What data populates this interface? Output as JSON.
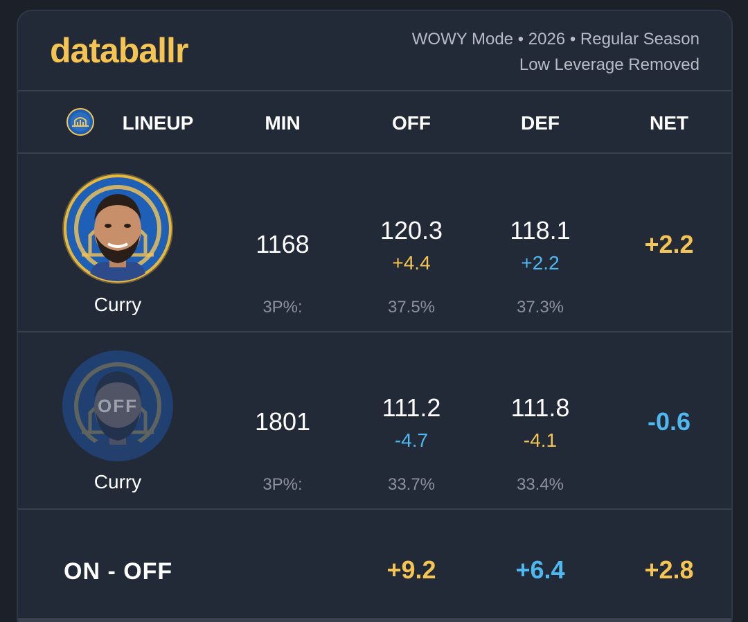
{
  "header": {
    "logo": "databallr",
    "meta_line1": "WOWY Mode • 2026 • Regular Season",
    "meta_line2": "Low Leverage Removed"
  },
  "columns": {
    "lineup": "LINEUP",
    "min": "MIN",
    "off": "OFF",
    "def": "DEF",
    "net": "NET"
  },
  "rows": [
    {
      "player": "Curry",
      "status": "on",
      "min": "1168",
      "off": "120.3",
      "off_delta": "+4.4",
      "def": "118.1",
      "def_delta": "+2.2",
      "net": "+2.2",
      "label_3p": "3P%:",
      "off_3p": "37.5%",
      "def_3p": "37.3%"
    },
    {
      "player": "Curry",
      "status": "off",
      "off_badge": "OFF",
      "min": "1801",
      "off": "111.2",
      "off_delta": "-4.7",
      "def": "111.8",
      "def_delta": "-4.1",
      "net": "-0.6",
      "label_3p": "3P%:",
      "off_3p": "33.7%",
      "def_3p": "33.4%"
    }
  ],
  "summary": {
    "title": "ON - OFF",
    "off": "+9.2",
    "def": "+6.4",
    "net": "+2.8"
  },
  "icons": {
    "team_logo": "golden-state-warriors-logo",
    "avatar": "player-avatar"
  },
  "colors": {
    "background": "#1b2029",
    "card": "#222a37",
    "accent_gold": "#f6c453",
    "accent_blue": "#4fb8f0",
    "muted": "#8c929c"
  }
}
